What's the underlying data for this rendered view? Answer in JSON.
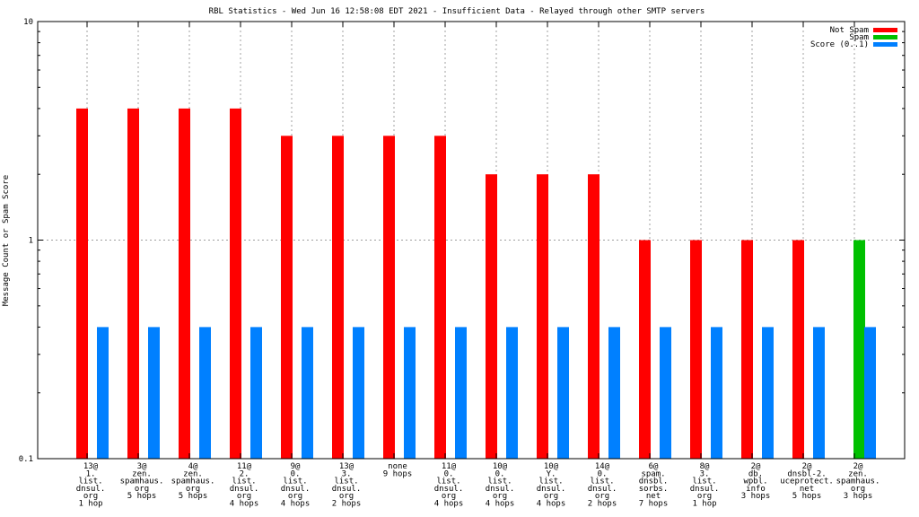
{
  "chart_data": {
    "type": "bar",
    "title": "RBL Statistics - Wed Jun 16 12:58:08 EDT 2021 - Insufficient Data - Relayed through other SMTP servers",
    "xlabel": "",
    "ylabel": "Message Count or Spam Score",
    "yscale": "log",
    "ylim": [
      0.1,
      10
    ],
    "yticks": [
      "0.1",
      "1",
      "10"
    ],
    "grid": true,
    "legend_position": "top-right",
    "categories": [
      "13@\n1.\nlist.\ndnsul.\norg\n1 hop",
      "3@\nzen.\nspamhaus.\norg\n5 hops",
      "4@\nzen.\nspamhaus.\norg\n5 hops",
      "11@\n2.\nlist.\ndnsul.\norg\n4 hops",
      "9@\n0.\nlist.\ndnsul.\norg\n4 hops",
      "13@\n3.\nlist.\ndnsul.\norg\n2 hops",
      "none\n9 hops",
      "11@\n0.\nlist.\ndnsul.\norg\n4 hops",
      "10@\n0.\nlist.\ndnsul.\norg\n4 hops",
      "10@\nY.\nlist.\ndnsul.\norg\n4 hops",
      "14@\n0.\nlist.\ndnsul.\norg\n2 hops",
      "6@\nspam.\ndnsbl.\nsorbs.\nnet\n7 hops",
      "8@\n3.\nlist.\ndnsul.\norg\n1 hop",
      "2@\ndb.\nwpbl.\ninfo\n3 hops",
      "2@\ndnsbl-2.\nuceprotect.\nnet\n5 hops",
      "2@\nzen.\nspamhaus.\norg\n3 hops"
    ],
    "series": [
      {
        "name": "Not Spam",
        "color": "#ff0000",
        "values": [
          4,
          4,
          4,
          4,
          3,
          3,
          3,
          3,
          2,
          2,
          2,
          1,
          1,
          1,
          1,
          0
        ]
      },
      {
        "name": "Spam",
        "color": "#00c000",
        "values": [
          0,
          0,
          0,
          0,
          0,
          0,
          0,
          0,
          0,
          0,
          0,
          0,
          0,
          0,
          0,
          1
        ]
      },
      {
        "name": "Score (0..1)",
        "color": "#0080ff",
        "values": [
          0.4,
          0.4,
          0.4,
          0.4,
          0.4,
          0.4,
          0.4,
          0.4,
          0.4,
          0.4,
          0.4,
          0.4,
          0.4,
          0.4,
          0.4,
          0.4
        ]
      }
    ]
  }
}
